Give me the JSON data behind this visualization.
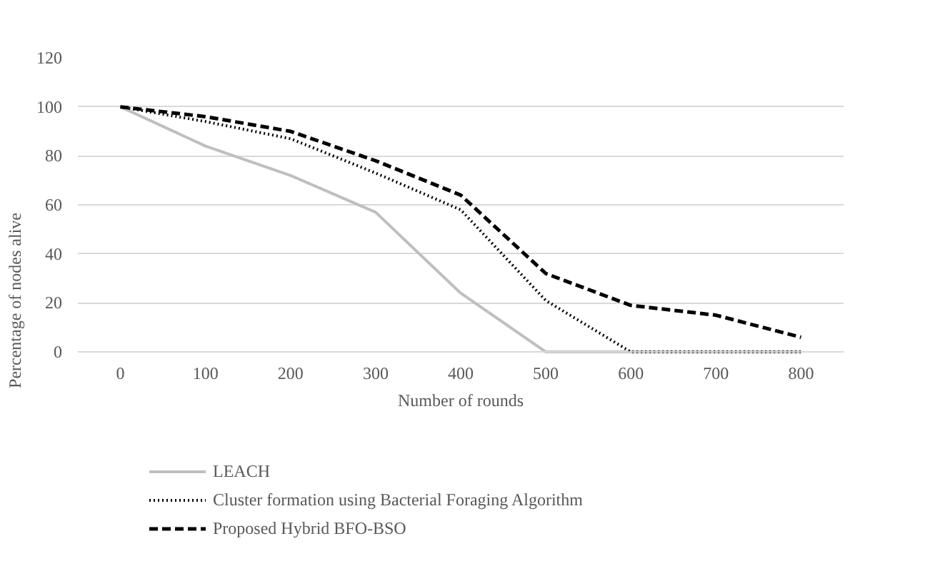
{
  "chart_data": {
    "type": "line",
    "xlabel": "Number of rounds",
    "ylabel": "Percentage of nodes alive",
    "categories": [
      "0",
      "100",
      "200",
      "300",
      "400",
      "500",
      "600",
      "700",
      "800"
    ],
    "series": [
      {
        "name": "LEACH",
        "color": "#bfbfbf",
        "line_style": "solid",
        "values": [
          100,
          84,
          72,
          57,
          24,
          0,
          0,
          0,
          0
        ]
      },
      {
        "name": "Cluster formation using Bacterial Foraging Algorithm",
        "color": "#000000",
        "line_style": "dotted",
        "values": [
          100,
          94,
          87,
          73,
          58,
          21,
          0,
          0,
          0
        ]
      },
      {
        "name": "Proposed Hybrid BFO-BSO",
        "color": "#000000",
        "line_style": "dashed",
        "values": [
          100,
          96,
          90,
          78,
          64,
          32,
          19,
          15,
          6
        ]
      }
    ],
    "ylim": [
      0,
      120
    ],
    "yticks": [
      0,
      20,
      40,
      60,
      80,
      100,
      120
    ],
    "grid": "y",
    "legend": "bottom",
    "marker": "none"
  }
}
